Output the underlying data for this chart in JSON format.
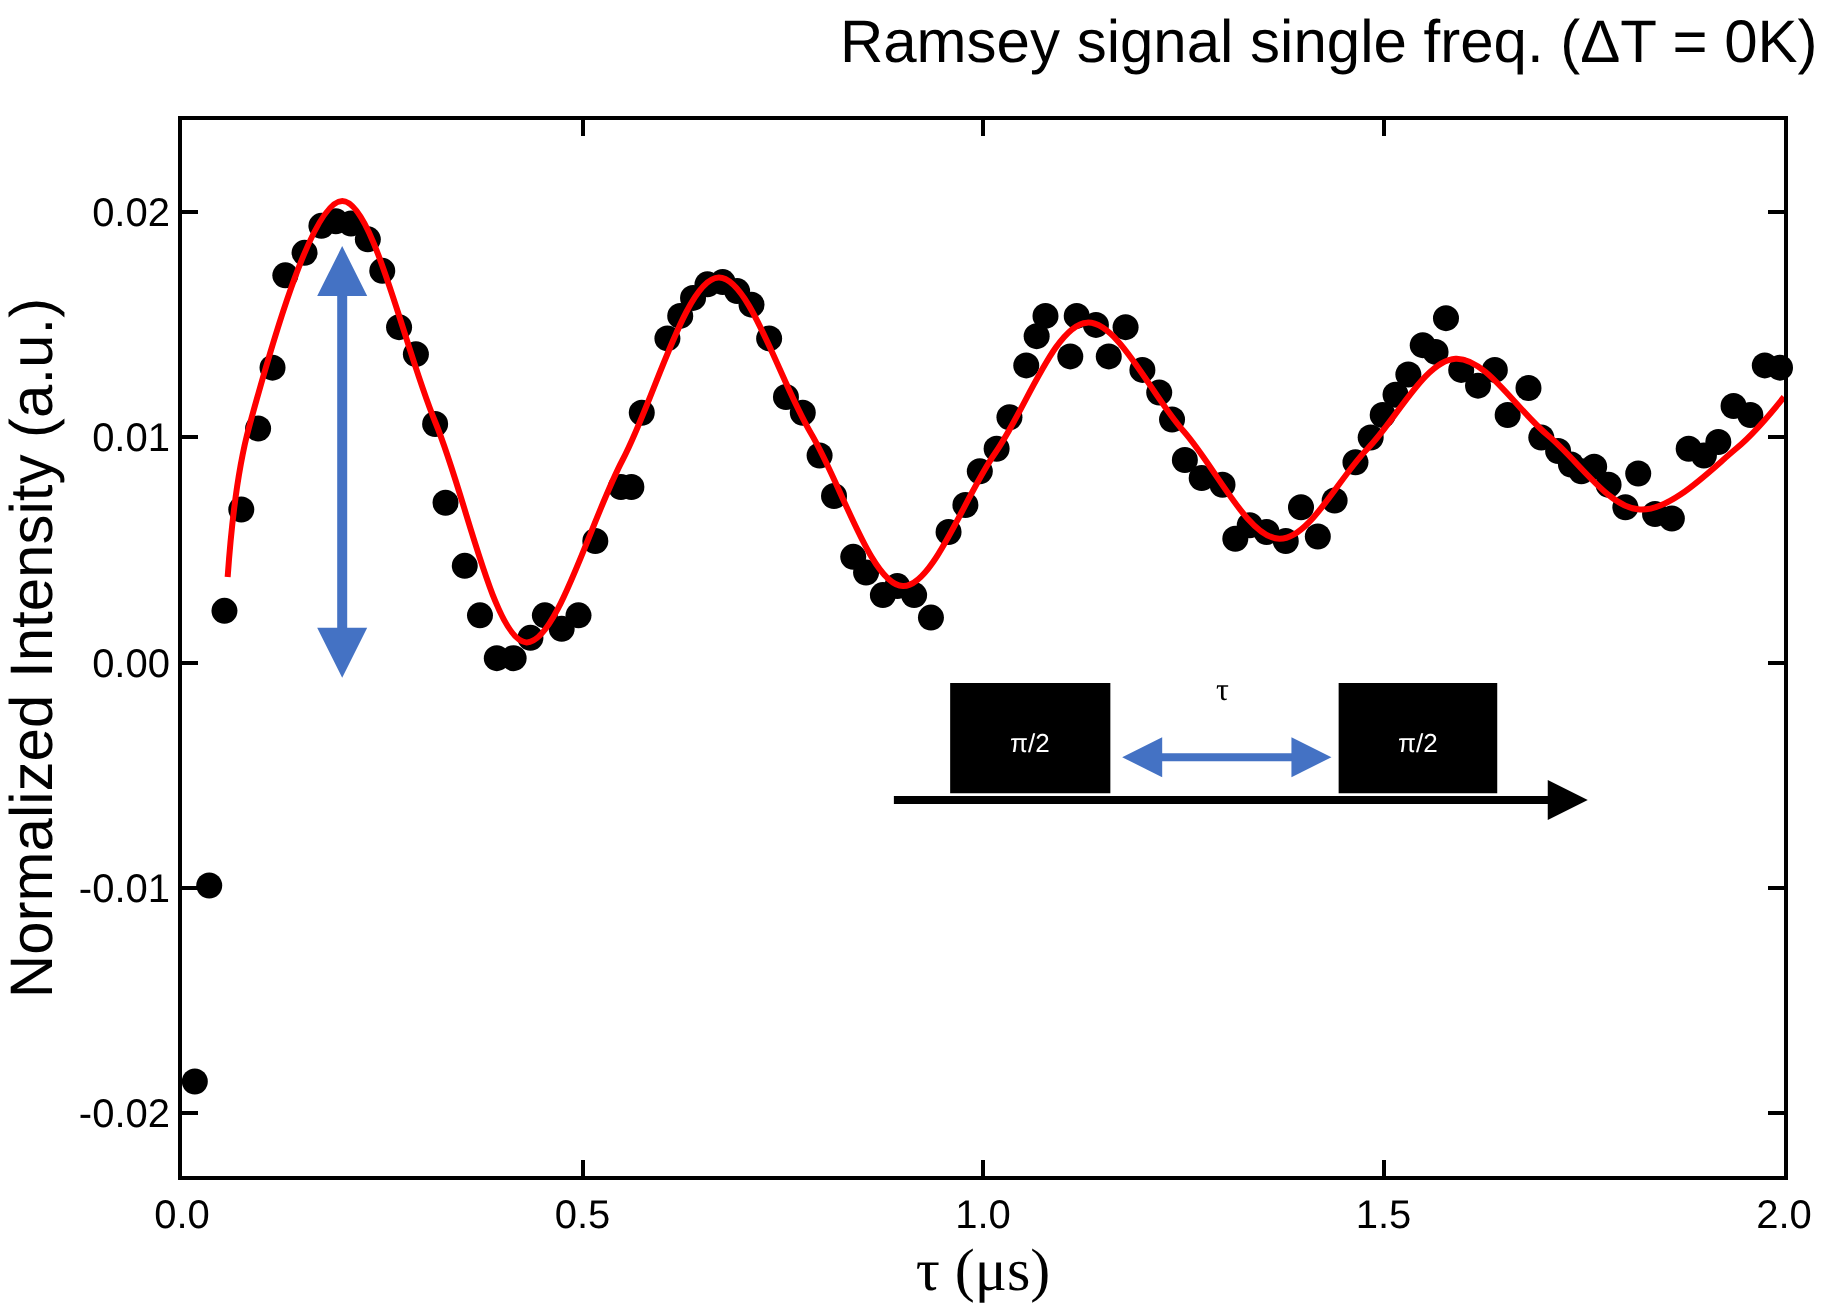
{
  "chart_data": {
    "type": "scatter",
    "title": "Ramsey signal single freq. (ΔT = 0K)",
    "xlabel": "τ (μs)",
    "ylabel": "Normalized Intensity (a.u.)",
    "xlim": [
      0,
      2
    ],
    "ylim": [
      -0.0228,
      0.0241
    ],
    "xticks": [
      {
        "value": 0,
        "label": "0.0"
      },
      0.5,
      {
        "value": 1,
        "label": "1.0"
      },
      1.5,
      {
        "value": 2,
        "label": "2.0"
      }
    ],
    "yticks": [
      -0.02,
      -0.01,
      {
        "value": 0,
        "label": "0.00"
      },
      0.01,
      0.02
    ],
    "marker": "circle",
    "annotations": [
      "π/2",
      "π/2",
      "τ"
    ],
    "series": [
      {
        "color": "#000000",
        "x": [
          0.016,
          0.034,
          0.053,
          0.074,
          0.095,
          0.113,
          0.129,
          0.153,
          0.174,
          0.192,
          0.211,
          0.232,
          0.25,
          0.271,
          0.292,
          0.316,
          0.329,
          0.353,
          0.372,
          0.393,
          0.414,
          0.435,
          0.453,
          0.474,
          0.495,
          0.516,
          0.548,
          0.561,
          0.574,
          0.606,
          0.622,
          0.638,
          0.656,
          0.675,
          0.693,
          0.711,
          0.733,
          0.754,
          0.775,
          0.796,
          0.814,
          0.838,
          0.854,
          0.875,
          0.893,
          0.914,
          0.935,
          0.957,
          0.978,
          0.996,
          1.017,
          1.033,
          1.054,
          1.067,
          1.078,
          1.109,
          1.117,
          1.141,
          1.157,
          1.178,
          1.199,
          1.22,
          1.236,
          1.252,
          1.273,
          1.299,
          1.315,
          1.333,
          1.354,
          1.378,
          1.397,
          1.418,
          1.439,
          1.465,
          1.484,
          1.499,
          1.515,
          1.531,
          1.549,
          1.565,
          1.578,
          1.597,
          1.618,
          1.639,
          1.655,
          1.681,
          1.697,
          1.718,
          1.734,
          1.747,
          1.763,
          1.781,
          1.802,
          1.818,
          1.839,
          1.86,
          1.881,
          1.9,
          1.918,
          1.937,
          1.958,
          1.976,
          1.995
        ],
        "values": [
          -0.0186,
          -0.0099,
          0.0023,
          0.0068,
          0.0104,
          0.0131,
          0.0172,
          0.0182,
          0.0194,
          0.0196,
          0.0195,
          0.0188,
          0.0174,
          0.0149,
          0.0137,
          0.0106,
          0.0071,
          0.0043,
          0.0021,
          0.0002,
          0.0002,
          0.0011,
          0.0021,
          0.0015,
          0.0021,
          0.0054,
          0.0078,
          0.0078,
          0.0111,
          0.0144,
          0.0154,
          0.0162,
          0.0168,
          0.0169,
          0.0165,
          0.0159,
          0.0144,
          0.0118,
          0.0111,
          0.0092,
          0.0074,
          0.0047,
          0.004,
          0.003,
          0.0034,
          0.003,
          0.002,
          0.0058,
          0.007,
          0.0085,
          0.0095,
          0.0109,
          0.0132,
          0.0145,
          0.0154,
          0.0136,
          0.0154,
          0.015,
          0.0136,
          0.0149,
          0.013,
          0.012,
          0.0108,
          0.009,
          0.0082,
          0.0079,
          0.0055,
          0.0061,
          0.0058,
          0.0054,
          0.0069,
          0.0056,
          0.0072,
          0.0089,
          0.01,
          0.011,
          0.0119,
          0.0128,
          0.0141,
          0.0138,
          0.0153,
          0.013,
          0.0123,
          0.013,
          0.011,
          0.0122,
          0.01,
          0.0094,
          0.0088,
          0.0085,
          0.0087,
          0.0079,
          0.0069,
          0.0084,
          0.0066,
          0.0064,
          0.0095,
          0.0092,
          0.0098,
          0.0114,
          0.011,
          0.0132,
          0.0131
        ]
      },
      {
        "type": "line",
        "color": "#ff0000",
        "marker": "none",
        "x": [
          0.057,
          0.084,
          0.2,
          0.316,
          0.43,
          0.55,
          0.67,
          0.785,
          0.9,
          1.015,
          1.13,
          1.25,
          1.37,
          1.48,
          1.59,
          1.705,
          1.82,
          1.94,
          2.0
        ],
        "values": [
          0.0038,
          0.0105,
          0.0205,
          0.0107,
          0.0009,
          0.009,
          0.0171,
          0.0102,
          0.0034,
          0.0093,
          0.0151,
          0.0103,
          0.0055,
          0.0095,
          0.0135,
          0.0101,
          0.0068,
          0.0095,
          0.0118
        ]
      }
    ]
  }
}
